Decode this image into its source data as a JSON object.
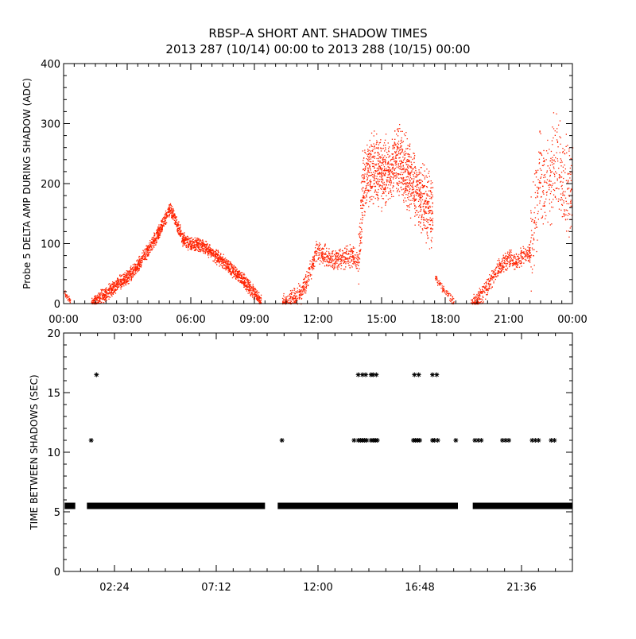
{
  "title_line1": "RBSP–A SHORT ANT. SHADOW TIMES",
  "title_line2": "2013 287 (10/14) 00:00 to 2013 288 (10/15) 00:00",
  "colors": {
    "top_points": "#ff2200",
    "bottom_points": "#000000",
    "frame": "#000000",
    "background": "#ffffff"
  },
  "chart_data": [
    {
      "type": "scatter",
      "x_unit": "hours of 2013-10-14 (00:00 to 24:00)",
      "ylabel": "Probe 5 DELTA AMP DURING SHADOW (ADC)",
      "xlim": [
        0,
        24
      ],
      "ylim": [
        0,
        400
      ],
      "x_tick_values": [
        0,
        3,
        6,
        9,
        12,
        15,
        18,
        21,
        24
      ],
      "x_tick_labels": [
        "00:00",
        "03:00",
        "06:00",
        "09:00",
        "12:00",
        "15:00",
        "18:00",
        "21:00",
        "00:00"
      ],
      "y_tick_values": [
        0,
        100,
        200,
        300,
        400
      ],
      "y_tick_labels": [
        "0",
        "100",
        "200",
        "300",
        "400"
      ],
      "grid": false,
      "legend": "none",
      "series": [
        {
          "color": "#ff2200",
          "marker": "dot",
          "envelope": [
            {
              "x": [
                0.0,
                0.3
              ],
              "y": [
                20,
                5
              ],
              "spread": 10,
              "density": 40
            },
            {
              "x": [
                1.3,
                1.5,
                2.0,
                2.5,
                3.0,
                3.5,
                4.0,
                4.5,
                5.0,
                5.3,
                5.6,
                6.0,
                6.5,
                7.0,
                7.5,
                8.0,
                8.5,
                9.0,
                9.3
              ],
              "y": [
                0,
                5,
                18,
                32,
                45,
                65,
                92,
                122,
                160,
                135,
                108,
                100,
                98,
                85,
                70,
                55,
                38,
                18,
                5
              ],
              "spread": 18,
              "density": 90
            },
            {
              "x": [
                10.3,
                10.7,
                11.2,
                11.6,
                11.9,
                12.3,
                12.7,
                13.2,
                13.6,
                13.9
              ],
              "y": [
                0,
                5,
                20,
                55,
                85,
                82,
                72,
                78,
                80,
                70
              ],
              "spread": 28,
              "density": 60
            },
            {
              "x": [
                13.9,
                14.1,
                14.5,
                15.0,
                15.4,
                15.8,
                16.2,
                16.7,
                17.1,
                17.4
              ],
              "y": [
                70,
                200,
                230,
                220,
                230,
                240,
                215,
                185,
                165,
                150
              ],
              "spread": 90,
              "density": 120
            },
            {
              "x": [
                17.5,
                17.8,
                18.1,
                18.4
              ],
              "y": [
                45,
                30,
                15,
                3
              ],
              "spread": 12,
              "density": 30
            },
            {
              "x": [
                19.2,
                19.5,
                20.0,
                20.5,
                21.0,
                21.3,
                21.6,
                22.0
              ],
              "y": [
                0,
                5,
                30,
                60,
                75,
                72,
                80,
                85
              ],
              "spread": 24,
              "density": 60
            },
            {
              "x": [
                22.0,
                22.4,
                22.8,
                23.2,
                23.6,
                24.0
              ],
              "y": [
                90,
                210,
                190,
                240,
                200,
                195
              ],
              "spread": 130,
              "density": 60
            }
          ]
        }
      ]
    },
    {
      "type": "scatter",
      "x_unit": "hours of 2013-10-14 (00:00 to 24:00)",
      "ylabel": "TIME BETWEEN SHADOWS (SEC)",
      "xlim": [
        0,
        24
      ],
      "ylim": [
        0,
        20
      ],
      "x_tick_values": [
        2.4,
        7.2,
        12.0,
        16.8,
        21.6
      ],
      "x_tick_labels": [
        "02:24",
        "07:12",
        "12:00",
        "16:48",
        "21:36"
      ],
      "y_tick_values": [
        0,
        5,
        10,
        15,
        20
      ],
      "y_tick_labels": [
        "0",
        "5",
        "10",
        "15",
        "20"
      ],
      "grid": false,
      "legend": "none",
      "series": [
        {
          "color": "#000000",
          "marker": "asterisk",
          "bands": [
            {
              "y": 5.5,
              "x_ranges": [
                [
                  0.05,
                  0.55
                ],
                [
                  1.1,
                  9.5
                ],
                [
                  10.1,
                  18.6
                ],
                [
                  19.3,
                  24.0
                ]
              ]
            }
          ],
          "points": [
            {
              "x": 1.3,
              "y": 11.0
            },
            {
              "x": 1.55,
              "y": 16.5
            },
            {
              "x": 10.3,
              "y": 11.0
            },
            {
              "x": 13.7,
              "y": 11.0
            },
            {
              "x": 13.9,
              "y": 11.0
            },
            {
              "x": 14.0,
              "y": 11.0
            },
            {
              "x": 14.1,
              "y": 11.0
            },
            {
              "x": 14.2,
              "y": 11.0
            },
            {
              "x": 14.3,
              "y": 11.0
            },
            {
              "x": 14.5,
              "y": 11.0
            },
            {
              "x": 14.6,
              "y": 11.0
            },
            {
              "x": 14.7,
              "y": 11.0
            },
            {
              "x": 14.8,
              "y": 11.0
            },
            {
              "x": 13.9,
              "y": 16.5
            },
            {
              "x": 14.1,
              "y": 16.5
            },
            {
              "x": 14.25,
              "y": 16.5
            },
            {
              "x": 14.5,
              "y": 16.5
            },
            {
              "x": 14.6,
              "y": 16.5
            },
            {
              "x": 14.75,
              "y": 16.5
            },
            {
              "x": 16.5,
              "y": 11.0
            },
            {
              "x": 16.6,
              "y": 11.0
            },
            {
              "x": 16.7,
              "y": 11.0
            },
            {
              "x": 16.8,
              "y": 11.0
            },
            {
              "x": 16.55,
              "y": 16.5
            },
            {
              "x": 16.75,
              "y": 16.5
            },
            {
              "x": 17.4,
              "y": 11.0
            },
            {
              "x": 17.5,
              "y": 11.0
            },
            {
              "x": 17.65,
              "y": 11.0
            },
            {
              "x": 17.4,
              "y": 16.5
            },
            {
              "x": 17.6,
              "y": 16.5
            },
            {
              "x": 18.5,
              "y": 11.0
            },
            {
              "x": 19.4,
              "y": 11.0
            },
            {
              "x": 19.55,
              "y": 11.0
            },
            {
              "x": 19.7,
              "y": 11.0
            },
            {
              "x": 20.7,
              "y": 11.0
            },
            {
              "x": 20.85,
              "y": 11.0
            },
            {
              "x": 21.0,
              "y": 11.0
            },
            {
              "x": 22.1,
              "y": 11.0
            },
            {
              "x": 22.25,
              "y": 11.0
            },
            {
              "x": 22.4,
              "y": 11.0
            },
            {
              "x": 23.0,
              "y": 11.0
            },
            {
              "x": 23.15,
              "y": 11.0
            }
          ]
        }
      ]
    }
  ]
}
